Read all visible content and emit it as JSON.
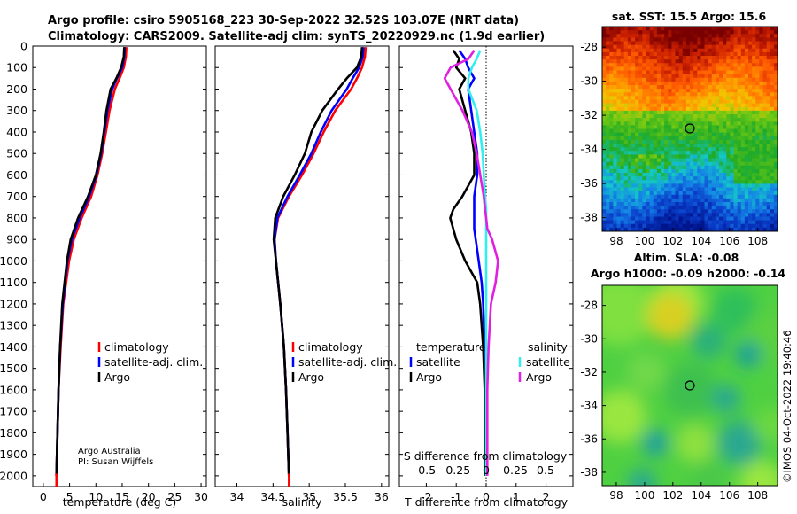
{
  "title_line1": "Argo profile: csiro 5905168_223 30-Sep-2022 32.52S 103.07E (NRT data)",
  "title_line2": "Climatology: CARS2009. Satellite-adj clim: synTS_20220929.nc (1.9d earlier)",
  "credit_line1": "Argo Australia",
  "credit_line2": "PI: Susan Wijffels",
  "watermark": "©IMOS 04-Oct-2022 19:40:46",
  "colors": {
    "climatology": "#ff0000",
    "satellite": "#0000ff",
    "argo": "#000000",
    "sat_salinity": "#33eeee",
    "argo_salinity": "#e020e0"
  },
  "chart_data": [
    {
      "type": "line",
      "id": "temperature",
      "xlabel": "temperature (deg C)",
      "ylabel": "",
      "xlim": [
        -2,
        31
      ],
      "ylim": [
        2050,
        0
      ],
      "x_ticks": [
        0,
        5,
        10,
        15,
        20,
        25,
        30
      ],
      "y_ticks": [
        0,
        100,
        200,
        300,
        400,
        500,
        600,
        700,
        800,
        900,
        1000,
        1100,
        1200,
        1300,
        1400,
        1500,
        1600,
        1700,
        1800,
        1900,
        2000
      ],
      "legend": [
        "climatology",
        "satellite-adj. clim.",
        "Argo"
      ],
      "depth": [
        5,
        50,
        100,
        150,
        200,
        300,
        400,
        500,
        600,
        700,
        800,
        900,
        1000,
        1200,
        1400,
        1600,
        1800,
        2000
      ],
      "series": [
        {
          "name": "climatology",
          "values": [
            15.8,
            15.7,
            15.3,
            14.5,
            13.6,
            12.6,
            11.9,
            11.2,
            10.3,
            9.1,
            7.3,
            5.8,
            4.9,
            3.8,
            3.3,
            2.9,
            2.7,
            2.5
          ]
        },
        {
          "name": "satellite-adj. clim.",
          "values": [
            15.5,
            15.4,
            15.0,
            14.0,
            13.1,
            12.2,
            11.6,
            11.0,
            10.1,
            8.7,
            6.9,
            5.4,
            4.6,
            3.7,
            3.2,
            2.9,
            2.7,
            2.5
          ]
        },
        {
          "name": "Argo",
          "values": [
            15.4,
            15.3,
            14.8,
            13.9,
            12.8,
            12.0,
            11.5,
            10.9,
            10.0,
            8.5,
            6.6,
            5.2,
            4.5,
            3.6,
            3.2,
            2.9,
            2.7,
            2.5
          ]
        }
      ]
    },
    {
      "type": "line",
      "id": "salinity",
      "xlabel": "salinity",
      "ylabel": "",
      "xlim": [
        33.7,
        36.1
      ],
      "ylim": [
        2050,
        0
      ],
      "x_ticks": [
        34,
        34.5,
        35,
        35.5,
        36
      ],
      "legend": [
        "climatology",
        "satellite-adj. clim.",
        "Argo"
      ],
      "depth": [
        5,
        50,
        100,
        150,
        200,
        300,
        400,
        500,
        600,
        700,
        800,
        900,
        1000,
        1200,
        1400,
        1600,
        1800,
        2000
      ],
      "series": [
        {
          "name": "climatology",
          "values": [
            35.78,
            35.77,
            35.73,
            35.66,
            35.58,
            35.36,
            35.2,
            35.06,
            34.9,
            34.72,
            34.57,
            34.52,
            34.54,
            34.6,
            34.65,
            34.68,
            34.7,
            34.72
          ]
        },
        {
          "name": "satellite-adj. clim.",
          "values": [
            35.75,
            35.74,
            35.69,
            35.6,
            35.52,
            35.31,
            35.16,
            35.03,
            34.87,
            34.7,
            34.56,
            34.52,
            34.54,
            34.6,
            34.65,
            34.68,
            34.7,
            34.72
          ]
        },
        {
          "name": "Argo",
          "values": [
            35.73,
            35.72,
            35.66,
            35.52,
            35.4,
            35.18,
            35.03,
            34.94,
            34.8,
            34.64,
            34.53,
            34.51,
            34.54,
            34.6,
            34.65,
            34.68,
            34.7,
            34.72
          ]
        }
      ]
    },
    {
      "type": "line",
      "id": "difference",
      "xlabel": "T difference from climatology",
      "xlabel2": "S difference from climatology",
      "xlim": [
        -2.9,
        2.9
      ],
      "ylim": [
        2050,
        0
      ],
      "x_ticks": [
        -2,
        -1,
        0,
        1,
        2
      ],
      "s_ticks_labels": [
        "-0.5",
        "-0.25",
        "0",
        "0.25",
        "0.5"
      ],
      "legend_titles": [
        "temperature",
        "salinity"
      ],
      "legend": [
        "satellite",
        "Argo",
        "satellite",
        "Argo"
      ],
      "depth": [
        20,
        60,
        100,
        150,
        200,
        300,
        400,
        500,
        600,
        700,
        760,
        800,
        850,
        900,
        1000,
        1100,
        1200,
        1400,
        1600,
        1800,
        2000
      ],
      "series": [
        {
          "name": "temperature satellite",
          "values": [
            -0.9,
            -0.7,
            -0.6,
            -0.4,
            -0.6,
            -0.5,
            -0.4,
            -0.3,
            -0.3,
            -0.4,
            -0.4,
            -0.4,
            -0.4,
            -0.35,
            -0.25,
            -0.15,
            -0.1,
            -0.05,
            -0.05,
            -0.05,
            -0.03
          ]
        },
        {
          "name": "temperature Argo",
          "values": [
            -1.1,
            -0.9,
            -1.0,
            -0.7,
            -0.9,
            -0.7,
            -0.5,
            -0.4,
            -0.4,
            -0.8,
            -1.1,
            -1.2,
            -1.1,
            -1.0,
            -0.7,
            -0.3,
            -0.2,
            -0.1,
            -0.05,
            -0.05,
            -0.03
          ]
        },
        {
          "name": "salinity satellite",
          "values": [
            -0.05,
            -0.08,
            -0.12,
            -0.15,
            -0.15,
            -0.08,
            -0.05,
            -0.03,
            -0.02,
            -0.01,
            0,
            0,
            0,
            0,
            0,
            0,
            0,
            0,
            0,
            0,
            0
          ]
        },
        {
          "name": "salinity Argo",
          "values": [
            -0.1,
            -0.15,
            -0.3,
            -0.35,
            -0.3,
            -0.2,
            -0.12,
            -0.08,
            -0.05,
            -0.02,
            -0.01,
            0,
            0.01,
            0.05,
            0.1,
            0.08,
            0.04,
            0.02,
            0.01,
            0.01,
            0.01
          ]
        }
      ]
    },
    {
      "type": "heatmap",
      "id": "sst_map",
      "title": "sat. SST: 15.5 Argo: 15.6",
      "x_tick_labels": [
        "98",
        "100",
        "102",
        "104",
        "106",
        "108"
      ],
      "y_tick_labels": [
        "-28",
        "-30",
        "-32",
        "-34",
        "-36",
        "-38"
      ],
      "lon_range": [
        97,
        109.4
      ],
      "lat_range": [
        -38.8,
        -26.8
      ],
      "marker": {
        "lon": 103.07,
        "lat": -32.52
      }
    },
    {
      "type": "heatmap",
      "id": "sla_map",
      "title_line1": "Altim. SLA: -0.08",
      "title_line2": "Argo h1000: -0.09 h2000: -0.14",
      "x_tick_labels": [
        "98",
        "100",
        "102",
        "104",
        "106",
        "108"
      ],
      "y_tick_labels": [
        "-28",
        "-30",
        "-32",
        "-34",
        "-36",
        "-38"
      ],
      "lon_range": [
        97,
        109.4
      ],
      "lat_range": [
        -38.8,
        -26.8
      ],
      "marker": {
        "lon": 103.07,
        "lat": -32.52
      }
    }
  ]
}
